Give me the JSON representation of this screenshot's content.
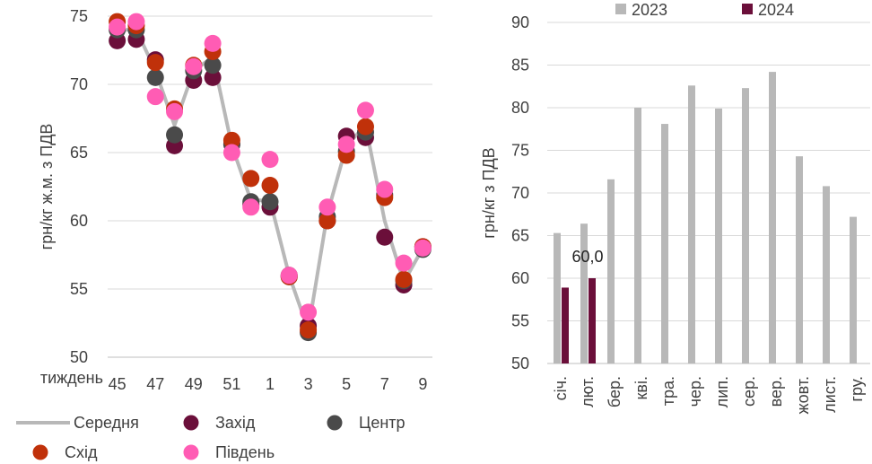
{
  "chart_data": [
    {
      "type": "line",
      "ylabel": "грн/кг ж.м. з ПДВ",
      "xlabel": "тиждень",
      "ylim": [
        50,
        75
      ],
      "yticks": [
        "50",
        "55",
        "60",
        "65",
        "70",
        "75"
      ],
      "x": [
        "45",
        "46",
        "47",
        "48",
        "49",
        "50",
        "51",
        "52",
        "1",
        "2",
        "3",
        "4",
        "5",
        "6",
        "7",
        "8",
        "9"
      ],
      "xtick_labels": [
        "45",
        "47",
        "49",
        "51",
        "1",
        "3",
        "5",
        "7",
        "9"
      ],
      "legend_position": "bottom",
      "grid": true,
      "series": [
        {
          "name": "Середня",
          "kind": "line",
          "color": "#b8b8b8",
          "values": [
            74.0,
            74.0,
            71.0,
            67.0,
            71.0,
            72.0,
            65.5,
            61.5,
            61.5,
            56.0,
            52.0,
            60.5,
            65.5,
            67.0,
            60.0,
            55.5,
            58.0
          ]
        },
        {
          "name": "Захід",
          "kind": "marker",
          "color": "#6b0f3a",
          "values": [
            73.2,
            73.3,
            71.8,
            65.5,
            70.3,
            70.5,
            65.6,
            61.2,
            61.0,
            56.0,
            52.3,
            60.0,
            66.2,
            66.1,
            58.8,
            55.3,
            58.1
          ]
        },
        {
          "name": "Центр",
          "kind": "marker",
          "color": "#4a4a4a",
          "values": [
            74.0,
            74.0,
            70.5,
            66.3,
            71.0,
            71.4,
            65.6,
            61.4,
            61.4,
            55.9,
            51.8,
            60.3,
            65.1,
            66.5,
            61.9,
            55.6,
            57.9
          ]
        },
        {
          "name": "Схід",
          "kind": "marker",
          "color": "#c0310a",
          "values": [
            74.6,
            74.3,
            71.6,
            68.2,
            71.4,
            72.4,
            65.9,
            63.1,
            62.6,
            55.9,
            52.0,
            60.0,
            64.8,
            66.9,
            61.7,
            55.7,
            58.1
          ]
        },
        {
          "name": "Південь",
          "kind": "marker",
          "color": "#ff5cb4",
          "values": [
            74.2,
            74.6,
            69.1,
            68.0,
            71.3,
            73.0,
            65.0,
            61.0,
            64.5,
            56.0,
            53.3,
            61.0,
            65.6,
            68.1,
            62.3,
            56.9,
            58.0
          ]
        }
      ]
    },
    {
      "type": "bar",
      "ylabel": "грн/кг з ПДВ",
      "ylim": [
        50,
        90
      ],
      "yticks": [
        "50",
        "55",
        "60",
        "65",
        "70",
        "75",
        "80",
        "85",
        "90"
      ],
      "categories": [
        "січ.",
        "лют.",
        "бер.",
        "кві.",
        "тра.",
        "чер.",
        "лип.",
        "сер.",
        "вер.",
        "жовт.",
        "лист.",
        "гру."
      ],
      "legend_position": "top",
      "grid": true,
      "series": [
        {
          "name": "2023",
          "color": "#b8b8b8",
          "values": [
            65.3,
            66.4,
            71.6,
            80.0,
            78.1,
            82.6,
            79.9,
            82.3,
            84.2,
            74.3,
            70.8,
            67.2
          ]
        },
        {
          "name": "2024",
          "color": "#6b0f3a",
          "values": [
            58.9,
            60.0,
            null,
            null,
            null,
            null,
            null,
            null,
            null,
            null,
            null,
            null
          ]
        }
      ],
      "data_labels": [
        {
          "series": "2024",
          "category": "лют.",
          "text": "60,0"
        }
      ]
    }
  ]
}
